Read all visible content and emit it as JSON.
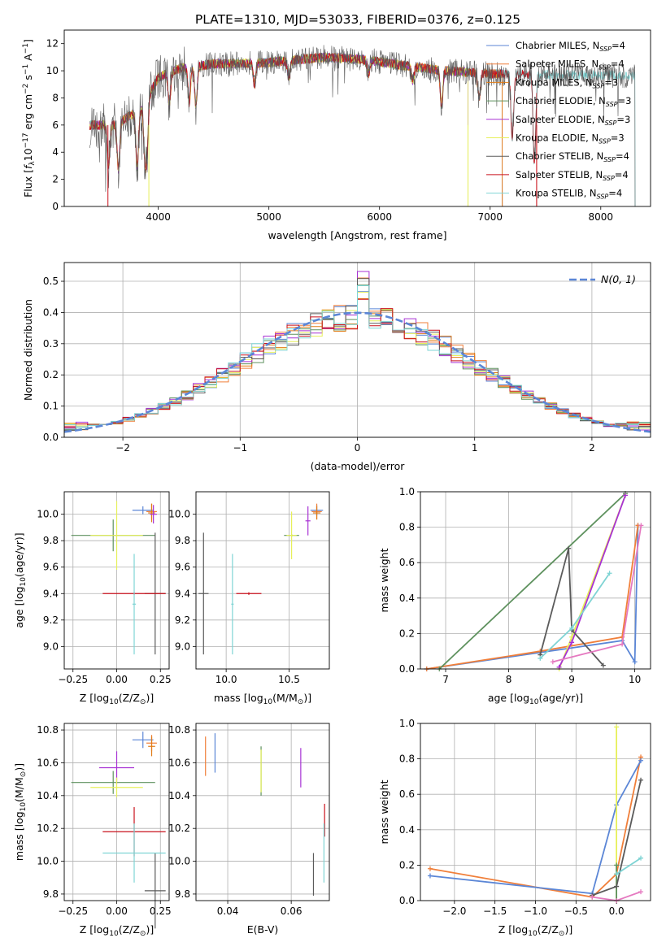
{
  "title": "PLATE=1310, MJD=53033, FIBERID=0376, z=0.125",
  "colors": {
    "Chabrier MILES": "#5b86d6",
    "Salpeter MILES": "#f07f3a",
    "Kroupa MILES": "#e17b15",
    "Chabrier ELODIE": "#5e915e",
    "Salpeter ELODIE": "#a832d4",
    "Kroupa ELODIE": "#e7f05a",
    "Chabrier STELIB": "#5b5b5b",
    "Salpeter STELIB": "#c9111c",
    "Kroupa STELIB": "#7fd4d4",
    "ageMass_extra": "#e579c0",
    "gaussian": "#5b86d6",
    "grid": "#b0b0b0"
  },
  "chart_data": [
    {
      "type": "line",
      "id": "spectrum",
      "title": "PLATE=1310, MJD=53033, FIBERID=0376, z=0.125",
      "xlabel": "wavelength [Angstrom, rest frame]",
      "ylabel": "Flux [f_λ 10^-17 erg cm^-2 s^-1 A^-1]",
      "xlim": [
        3150,
        8450
      ],
      "ylim": [
        0,
        13
      ],
      "xticks": [
        "4000",
        "5000",
        "6000",
        "7000",
        "8000"
      ],
      "yticks": [
        "0",
        "2",
        "4",
        "6",
        "8",
        "10",
        "12"
      ],
      "legend_position": "top-right",
      "series": [
        {
          "name": "Chabrier MILES",
          "sub": "SSP",
          "n": "4",
          "end": 7110
        },
        {
          "name": "Salpeter MILES",
          "sub": "SSP",
          "n": "4",
          "end": 7110
        },
        {
          "name": "Kroupa MILES",
          "sub": "SSP",
          "n": "3",
          "end": 7110
        },
        {
          "name": "Chabrier ELODIE",
          "sub": "SSP",
          "n": "3",
          "end": 6800
        },
        {
          "name": "Salpeter ELODIE",
          "sub": "SSP",
          "n": "3",
          "end": 6800
        },
        {
          "name": "Kroupa ELODIE",
          "sub": "SSP",
          "n": "3",
          "end": 6800
        },
        {
          "name": "Chabrier STELIB",
          "sub": "SSP",
          "n": "4",
          "end": 8310
        },
        {
          "name": "Salpeter STELIB",
          "sub": "SSP",
          "n": "4",
          "end": 7420
        },
        {
          "name": "Kroupa STELIB",
          "sub": "SSP",
          "n": "4",
          "end": 8310
        }
      ],
      "continuum": [
        [
          3400,
          6.0
        ],
        [
          3600,
          6.0
        ],
        [
          3850,
          7.2
        ],
        [
          4000,
          9.5
        ],
        [
          4200,
          10.2
        ],
        [
          4500,
          10.5
        ],
        [
          5000,
          10.6
        ],
        [
          5500,
          11.0
        ],
        [
          5900,
          10.8
        ],
        [
          6200,
          10.4
        ],
        [
          6600,
          10.0
        ],
        [
          7000,
          9.8
        ],
        [
          7400,
          9.7
        ],
        [
          8000,
          9.7
        ],
        [
          8300,
          9.6
        ]
      ],
      "dips": [
        [
          3550,
          3.0
        ],
        [
          3640,
          3.4
        ],
        [
          3810,
          4.1
        ],
        [
          3880,
          4.0
        ],
        [
          3900,
          3.0
        ],
        [
          4100,
          2.3
        ],
        [
          4280,
          2.6
        ],
        [
          4340,
          2.8
        ],
        [
          4870,
          1.6
        ],
        [
          5180,
          1.2
        ],
        [
          5900,
          1.0
        ],
        [
          6300,
          1.0
        ],
        [
          6560,
          2.5
        ],
        [
          6900,
          1.8
        ],
        [
          7200,
          4.6
        ],
        [
          7400,
          6.6
        ]
      ]
    },
    {
      "type": "line",
      "id": "residuals",
      "xlabel": "(data-model)/error",
      "ylabel": "Normed distribution",
      "xlim": [
        -2.5,
        2.5
      ],
      "ylim": [
        0,
        0.56
      ],
      "xticks": [
        "−2",
        "−1",
        "0",
        "1",
        "2"
      ],
      "yticks": [
        "0.0",
        "0.1",
        "0.2",
        "0.3",
        "0.4",
        "0.5"
      ],
      "bin_width": 0.1,
      "gaussian_label": "N(0, 1)",
      "legend_position": "top-right"
    },
    {
      "type": "scatter",
      "id": "Z_age",
      "xlabel": "Z [log10(Z/Z⊙)]",
      "ylabel": "age [log10(age/yr)]",
      "xlim": [
        -0.3,
        0.3
      ],
      "ylim": [
        8.83,
        10.17
      ],
      "xticks": [
        "−0.25",
        "0.00",
        "0.25"
      ],
      "yticks": [
        "9.0",
        "9.2",
        "9.4",
        "9.6",
        "9.8",
        "10.0"
      ],
      "points": [
        {
          "series": "Chabrier MILES",
          "x": 0.15,
          "y": 10.03,
          "xerr": 0.06,
          "yerr": 0.03
        },
        {
          "series": "Salpeter MILES",
          "x": 0.2,
          "y": 10.02,
          "xerr": 0.03,
          "yerr": 0.06
        },
        {
          "series": "Kroupa MILES",
          "x": 0.2,
          "y": 10.01,
          "xerr": 0.02,
          "yerr": 0.07
        },
        {
          "series": "Chabrier ELODIE",
          "x": -0.02,
          "y": 9.84,
          "xerr": 0.24,
          "yerr": 0.12
        },
        {
          "series": "Salpeter ELODIE",
          "x": 0.21,
          "y": 10.0,
          "xerr": 0.02,
          "yerr": 0.07
        },
        {
          "series": "Kroupa ELODIE",
          "x": 0.0,
          "y": 9.84,
          "xerr": 0.15,
          "yerr": 0.26
        },
        {
          "series": "Chabrier STELIB",
          "x": 0.22,
          "y": 9.4,
          "xerr": 0.06,
          "yerr": 0.46
        },
        {
          "series": "Salpeter STELIB",
          "x": 0.1,
          "y": 9.4,
          "xerr": 0.18,
          "yerr": 0.01
        },
        {
          "series": "Kroupa STELIB",
          "x": 0.1,
          "y": 9.32,
          "xerr": 0.01,
          "yerr": 0.38
        }
      ]
    },
    {
      "type": "scatter",
      "id": "mass_age",
      "xlabel": "mass [log10(M/M⊙)]",
      "ylabel": "",
      "xlim": [
        9.76,
        10.82
      ],
      "ylim": [
        8.83,
        10.17
      ],
      "xticks": [
        "10.0",
        "10.5"
      ],
      "yticks": [
        "9.0",
        "9.2",
        "9.4",
        "9.6",
        "9.8",
        "10.0"
      ],
      "points": [
        {
          "series": "Chabrier MILES",
          "x": 10.72,
          "y": 10.03,
          "xerr": 0.05,
          "yerr": 0.04
        },
        {
          "series": "Salpeter MILES",
          "x": 10.72,
          "y": 10.02,
          "xerr": 0.04,
          "yerr": 0.06
        },
        {
          "series": "Kroupa MILES",
          "x": 10.72,
          "y": 10.01,
          "xerr": 0.03,
          "yerr": 0.05
        },
        {
          "series": "Chabrier ELODIE",
          "x": 10.52,
          "y": 9.84,
          "xerr": 0.06,
          "yerr": 0.01
        },
        {
          "series": "Salpeter ELODIE",
          "x": 10.65,
          "y": 9.95,
          "xerr": 0.02,
          "yerr": 0.11
        },
        {
          "series": "Kroupa ELODIE",
          "x": 10.52,
          "y": 9.84,
          "xerr": 0.04,
          "yerr": 0.18
        },
        {
          "series": "Chabrier STELIB",
          "x": 9.82,
          "y": 9.4,
          "xerr": 0.04,
          "yerr": 0.46
        },
        {
          "series": "Salpeter STELIB",
          "x": 10.18,
          "y": 9.4,
          "xerr": 0.1,
          "yerr": 0.01
        },
        {
          "series": "Kroupa STELIB",
          "x": 10.05,
          "y": 9.32,
          "xerr": 0.01,
          "yerr": 0.38
        }
      ]
    },
    {
      "type": "line",
      "id": "age_weight",
      "xlabel": "age [log10(age/yr)]",
      "ylabel": "mass weight",
      "xlim": [
        6.6,
        10.25
      ],
      "ylim": [
        0,
        1
      ],
      "xticks": [
        "7",
        "8",
        "9",
        "10"
      ],
      "yticks": [
        "0.0",
        "0.2",
        "0.4",
        "0.6",
        "0.8",
        "1.0"
      ],
      "series": [
        {
          "series": "Chabrier MILES",
          "x": [
            6.7,
            9.8,
            10.0,
            10.05
          ],
          "y": [
            0.0,
            0.16,
            0.04,
            0.81
          ]
        },
        {
          "series": "Salpeter MILES",
          "x": [
            6.7,
            8.5,
            9.8,
            10.05
          ],
          "y": [
            0.0,
            0.1,
            0.18,
            0.81
          ]
        },
        {
          "series": "Chabrier ELODIE",
          "x": [
            6.9,
            9.85
          ],
          "y": [
            0.0,
            0.99
          ]
        },
        {
          "series": "Kroupa ELODIE",
          "x": [
            8.8,
            9.0,
            9.85
          ],
          "y": [
            0.0,
            0.18,
            0.98
          ]
        },
        {
          "series": "Salpeter ELODIE",
          "x": [
            8.8,
            9.0,
            9.85
          ],
          "y": [
            0.01,
            0.15,
            0.98
          ]
        },
        {
          "series": "Chabrier STELIB",
          "x": [
            8.5,
            8.95,
            9.0,
            9.5
          ],
          "y": [
            0.08,
            0.68,
            0.22,
            0.02
          ]
        },
        {
          "series": "Kroupa STELIB",
          "x": [
            8.5,
            9.0,
            9.6
          ],
          "y": [
            0.06,
            0.23,
            0.54
          ]
        },
        {
          "series": "ageMass_extra",
          "x": [
            8.7,
            9.8,
            10.1
          ],
          "y": [
            0.04,
            0.14,
            0.81
          ]
        }
      ]
    },
    {
      "type": "scatter",
      "id": "Z_mass",
      "xlabel": "Z [log10(Z/Z⊙)]",
      "ylabel": "mass [log10(M/M⊙)]",
      "xlim": [
        -0.3,
        0.3
      ],
      "ylim": [
        9.76,
        10.84
      ],
      "xticks": [
        "−0.25",
        "0.00",
        "0.25"
      ],
      "yticks": [
        "9.8",
        "10.0",
        "10.2",
        "10.4",
        "10.6",
        "10.8"
      ],
      "points": [
        {
          "series": "Chabrier MILES",
          "x": 0.15,
          "y": 10.74,
          "xerr": 0.06,
          "yerr": 0.05
        },
        {
          "series": "Salpeter MILES",
          "x": 0.2,
          "y": 10.72,
          "xerr": 0.03,
          "yerr": 0.05
        },
        {
          "series": "Kroupa MILES",
          "x": 0.2,
          "y": 10.7,
          "xerr": 0.02,
          "yerr": 0.06
        },
        {
          "series": "Chabrier ELODIE",
          "x": -0.02,
          "y": 10.48,
          "xerr": 0.24,
          "yerr": 0.07
        },
        {
          "series": "Salpeter ELODIE",
          "x": 0.0,
          "y": 10.57,
          "xerr": 0.1,
          "yerr": 0.1
        },
        {
          "series": "Kroupa ELODIE",
          "x": 0.0,
          "y": 10.45,
          "xerr": 0.15,
          "yerr": 0.06
        },
        {
          "series": "Chabrier STELIB",
          "x": 0.22,
          "y": 9.82,
          "xerr": 0.06,
          "yerr": 0.23
        },
        {
          "series": "Salpeter STELIB",
          "x": 0.1,
          "y": 10.18,
          "xerr": 0.18,
          "yerr": 0.15
        },
        {
          "series": "Kroupa STELIB",
          "x": 0.1,
          "y": 10.05,
          "xerr": 0.18,
          "yerr": 0.18
        }
      ]
    },
    {
      "type": "scatter",
      "id": "ebv_mass",
      "xlabel": "E(B-V)",
      "ylabel": "",
      "xlim": [
        0.03,
        0.072
      ],
      "ylim": [
        9.76,
        10.84
      ],
      "xticks": [
        "0.04",
        "0.06"
      ],
      "yticks": [
        "9.8",
        "10.0",
        "10.2",
        "10.4",
        "10.6",
        "10.8"
      ],
      "points": [
        {
          "series": "Salpeter MILES",
          "x": 0.033,
          "y": 10.64,
          "xerr": 0.0,
          "yerr": 0.12
        },
        {
          "series": "Chabrier MILES",
          "x": 0.036,
          "y": 10.66,
          "xerr": 0.0,
          "yerr": 0.12
        },
        {
          "series": "Chabrier ELODIE",
          "x": 0.0505,
          "y": 10.55,
          "xerr": 0.0,
          "yerr": 0.15
        },
        {
          "series": "Kroupa ELODIE",
          "x": 0.0505,
          "y": 10.55,
          "xerr": 0.0,
          "yerr": 0.13
        },
        {
          "series": "Salpeter ELODIE",
          "x": 0.063,
          "y": 10.57,
          "xerr": 0.0,
          "yerr": 0.12
        },
        {
          "series": "Chabrier STELIB",
          "x": 0.067,
          "y": 9.92,
          "xerr": 0.0,
          "yerr": 0.13
        },
        {
          "series": "Salpeter STELIB",
          "x": 0.0705,
          "y": 10.25,
          "xerr": 0.0,
          "yerr": 0.1
        },
        {
          "series": "Kroupa STELIB",
          "x": 0.0703,
          "y": 10.05,
          "xerr": 0.0,
          "yerr": 0.18
        }
      ]
    },
    {
      "type": "line",
      "id": "Z_weight",
      "xlabel": "Z [log10(Z/Z⊙)]",
      "ylabel": "mass weight",
      "xlim": [
        -2.42,
        0.42
      ],
      "ylim": [
        0,
        1
      ],
      "xticks": [
        "−2.0",
        "−1.5",
        "−1.0",
        "−0.5",
        "0.0"
      ],
      "yticks": [
        "0.0",
        "0.2",
        "0.4",
        "0.6",
        "0.8",
        "1.0"
      ],
      "series": [
        {
          "series": "Salpeter MILES",
          "x": [
            -2.3,
            -0.3,
            0.0,
            0.3
          ],
          "y": [
            0.18,
            0.02,
            0.15,
            0.81
          ]
        },
        {
          "series": "Chabrier MILES",
          "x": [
            -2.3,
            -0.3,
            0.0,
            0.3
          ],
          "y": [
            0.14,
            0.04,
            0.54,
            0.79
          ]
        },
        {
          "series": "Kroupa ELODIE",
          "x": [
            0.0,
            0.0
          ],
          "y": [
            0.0,
            0.98
          ]
        },
        {
          "series": "Chabrier ELODIE",
          "x": [
            0.0,
            0.0
          ],
          "y": [
            0.0,
            0.2
          ]
        },
        {
          "series": "Chabrier STELIB",
          "x": [
            -0.3,
            0.0,
            0.3
          ],
          "y": [
            0.03,
            0.08,
            0.68
          ]
        },
        {
          "series": "Kroupa STELIB",
          "x": [
            0.0,
            0.3
          ],
          "y": [
            0.15,
            0.24
          ]
        },
        {
          "series": "ageMass_extra",
          "x": [
            -0.3,
            0.0,
            0.3
          ],
          "y": [
            0.02,
            0.0,
            0.05
          ]
        }
      ]
    }
  ]
}
